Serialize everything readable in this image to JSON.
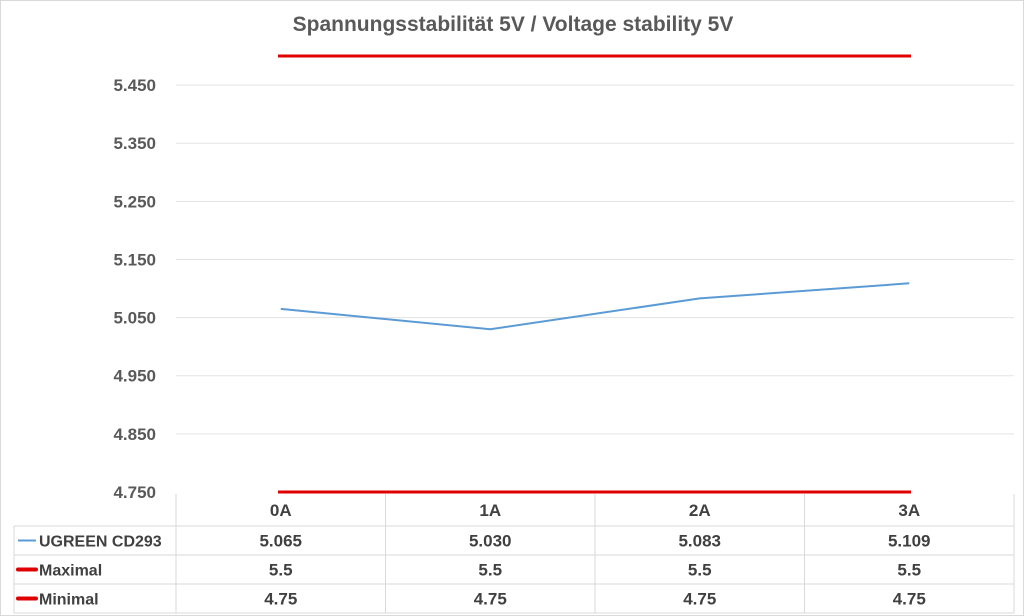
{
  "chart_data": {
    "type": "line",
    "title": "Spannungsstabilität 5V / Voltage stability 5V",
    "categories": [
      "0A",
      "1A",
      "2A",
      "3A"
    ],
    "ylim": [
      4.75,
      5.5
    ],
    "yticks": [
      "4.750",
      "4.850",
      "4.950",
      "5.050",
      "5.150",
      "5.250",
      "5.350",
      "5.450"
    ],
    "ytick_values": [
      4.75,
      4.85,
      4.95,
      5.05,
      5.15,
      5.25,
      5.35,
      5.45
    ],
    "grid": true,
    "legend_placement": "data table below chart",
    "series": [
      {
        "name": "UGREEN CD293",
        "values": [
          5.065,
          5.03,
          5.083,
          5.109
        ],
        "labels": [
          "5.065",
          "5.030",
          "5.083",
          "5.109"
        ],
        "color": "#5b9bd5"
      },
      {
        "name": "Maximal",
        "values": [
          5.5,
          5.5,
          5.5,
          5.5
        ],
        "labels": [
          "5.5",
          "5.5",
          "5.5",
          "5.5"
        ],
        "color": "#e00000"
      },
      {
        "name": "Minimal",
        "values": [
          4.75,
          4.75,
          4.75,
          4.75
        ],
        "labels": [
          "4.75",
          "4.75",
          "4.75",
          "4.75"
        ],
        "color": "#e00000"
      }
    ]
  }
}
